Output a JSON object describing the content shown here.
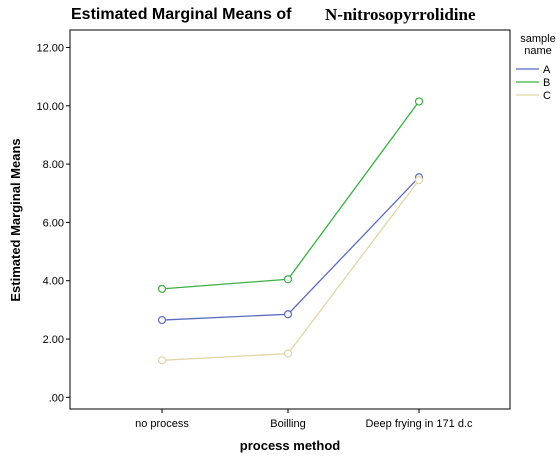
{
  "chart_data": {
    "type": "line",
    "title_part1": "Estimated Marginal Means of",
    "title_part2": "N-nitrosopyrrolidine",
    "xlabel": "process method",
    "ylabel": "Estimated Marginal Means",
    "categories": [
      "no process",
      "Boilling",
      "Deep frying in 171 d.c"
    ],
    "ylim": [
      -0.4,
      12.6
    ],
    "yticks": [
      0,
      2,
      4,
      6,
      8,
      10,
      12
    ],
    "ytick_labels": [
      ".00",
      "2.00",
      "4.00",
      "6.00",
      "8.00",
      "10.00",
      "12.00"
    ],
    "grid": false,
    "legend": {
      "title_line1": "sample",
      "title_line2": "name",
      "placement": "right"
    },
    "series": [
      {
        "name": "A",
        "color": "#5c6bc0",
        "values": [
          2.65,
          2.85,
          7.55
        ]
      },
      {
        "name": "B",
        "color": "#3cb043",
        "values": [
          3.72,
          4.05,
          10.15
        ]
      },
      {
        "name": "C",
        "color": "#e0d6a8",
        "values": [
          1.27,
          1.5,
          7.45
        ]
      }
    ]
  }
}
